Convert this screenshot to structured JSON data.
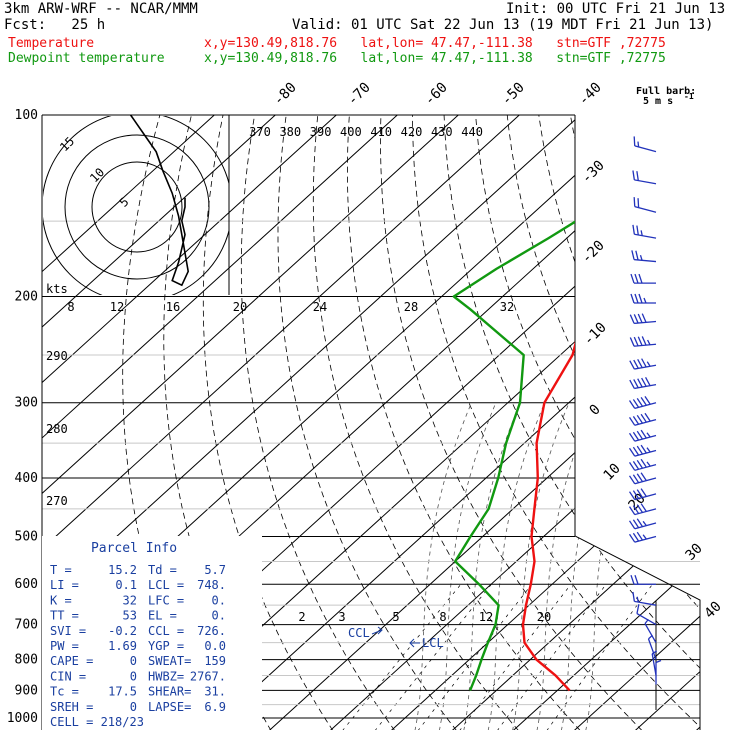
{
  "header": {
    "model": "3km ARW-WRF -- NCAR/MMM",
    "init": "Init: 00 UTC Fri 21 Jun 13",
    "fcst": "Fcst:   25 h",
    "valid": "Valid: 01 UTC Sat 22 Jun 13 (19 MDT Fri 21 Jun 13)",
    "temp_label": "Temperature",
    "dew_label": "Dewpoint temperature",
    "location": "x,y=130.49,818.76   lat,lon= 47.47,-111.38   stn=GTF ,72775",
    "colors": {
      "temperature": "#ee1111",
      "dewpoint": "#119911",
      "parcel_text": "#1a3fa0",
      "barbs": "#2233bb"
    }
  },
  "chart_data": {
    "type": "line",
    "title": "",
    "xlabel": "",
    "ylabel": "",
    "pressure_levels": [
      "100",
      "200",
      "300",
      "400",
      "500",
      "600",
      "700",
      "800",
      "900",
      "1000"
    ],
    "temp_ticks": [
      "-80",
      "-70",
      "-60",
      "-50",
      "-40",
      "-30",
      "-20",
      "-10",
      "0",
      "10",
      "20",
      "30",
      "40"
    ],
    "theta_labels": [
      "370",
      "380",
      "390",
      "400",
      "410",
      "420",
      "430",
      "440"
    ],
    "mixing_labels": [
      "2",
      "3",
      "5",
      "8",
      "12",
      "20"
    ],
    "dry_adiabat_labels": [
      "290",
      "280",
      "270"
    ],
    "hodo_top_labels": [
      "8",
      "12",
      "16",
      "20",
      "24",
      "28",
      "32"
    ],
    "hodo_rings": [
      "5",
      "10",
      "15"
    ],
    "hodo_unit": "kts",
    "barb_legend": {
      "title": "Full barb:",
      "unit": "5 m s",
      "sup": "-1"
    },
    "annotations": {
      "ccl": "CCL",
      "lcl": "LCL"
    },
    "series": [
      {
        "name": "Temperature",
        "points": [
          [
            900,
            22
          ],
          [
            850,
            17
          ],
          [
            800,
            11
          ],
          [
            750,
            6
          ],
          [
            700,
            2.5
          ],
          [
            650,
            -0.5
          ],
          [
            600,
            -3.5
          ],
          [
            550,
            -7
          ],
          [
            500,
            -12
          ],
          [
            450,
            -16.5
          ],
          [
            400,
            -21.5
          ],
          [
            350,
            -28
          ],
          [
            300,
            -34
          ],
          [
            250,
            -38
          ],
          [
            200,
            -46
          ],
          [
            180,
            -50
          ],
          [
            160,
            -53
          ],
          [
            140,
            -56
          ],
          [
            120,
            -58
          ],
          [
            100,
            -60
          ]
        ]
      },
      {
        "name": "Dewpoint temperature",
        "points": [
          [
            900,
            5.7
          ],
          [
            850,
            4
          ],
          [
            800,
            2
          ],
          [
            750,
            0
          ],
          [
            700,
            -2
          ],
          [
            650,
            -5
          ],
          [
            600,
            -12
          ],
          [
            550,
            -20
          ],
          [
            500,
            -22
          ],
          [
            450,
            -24
          ],
          [
            400,
            -28
          ],
          [
            350,
            -33
          ],
          [
            300,
            -38
          ],
          [
            250,
            -46
          ],
          [
            210,
            -63
          ],
          [
            200,
            -68
          ],
          [
            180,
            -66
          ],
          [
            160,
            -63
          ],
          [
            140,
            -60
          ],
          [
            120,
            -55
          ],
          [
            100,
            -52
          ]
        ]
      }
    ],
    "wind_barbs": [
      {
        "p": 115,
        "speed": 8,
        "dir": 285
      },
      {
        "p": 130,
        "speed": 10,
        "dir": 280
      },
      {
        "p": 145,
        "speed": 10,
        "dir": 285
      },
      {
        "p": 160,
        "speed": 13,
        "dir": 280
      },
      {
        "p": 175,
        "speed": 13,
        "dir": 275
      },
      {
        "p": 190,
        "speed": 15,
        "dir": 270
      },
      {
        "p": 205,
        "speed": 18,
        "dir": 270
      },
      {
        "p": 220,
        "speed": 20,
        "dir": 265
      },
      {
        "p": 240,
        "speed": 22,
        "dir": 265
      },
      {
        "p": 260,
        "speed": 24,
        "dir": 260
      },
      {
        "p": 280,
        "speed": 25,
        "dir": 260
      },
      {
        "p": 300,
        "speed": 26,
        "dir": 255
      },
      {
        "p": 320,
        "speed": 25,
        "dir": 255
      },
      {
        "p": 340,
        "speed": 24,
        "dir": 255
      },
      {
        "p": 360,
        "speed": 23,
        "dir": 255
      },
      {
        "p": 380,
        "speed": 22,
        "dir": 255
      },
      {
        "p": 400,
        "speed": 21,
        "dir": 255
      },
      {
        "p": 425,
        "speed": 20,
        "dir": 255
      },
      {
        "p": 450,
        "speed": 20,
        "dir": 255
      },
      {
        "p": 475,
        "speed": 19,
        "dir": 255
      },
      {
        "p": 500,
        "speed": 18,
        "dir": 255
      },
      {
        "p": 600,
        "speed": 10,
        "dir": 270
      },
      {
        "p": 650,
        "speed": 8,
        "dir": 280
      },
      {
        "p": 700,
        "speed": 5,
        "dir": 300
      },
      {
        "p": 750,
        "speed": 4,
        "dir": 330
      },
      {
        "p": 800,
        "speed": 3,
        "dir": 340
      },
      {
        "p": 850,
        "speed": 3,
        "dir": 350
      },
      {
        "p": 880,
        "speed": 2,
        "dir": 0
      }
    ],
    "hodograph": [
      [
        -2,
        -20
      ],
      [
        -1,
        -19
      ],
      [
        0,
        -18
      ],
      [
        3,
        -15
      ],
      [
        6,
        -12
      ],
      [
        8,
        -8
      ],
      [
        11,
        -3
      ],
      [
        13,
        2
      ],
      [
        14,
        6
      ],
      [
        15,
        10
      ],
      [
        16,
        14
      ],
      [
        14,
        17
      ],
      [
        11,
        16
      ],
      [
        13,
        12
      ],
      [
        14,
        9
      ],
      [
        15,
        6
      ],
      [
        14,
        3
      ],
      [
        15,
        0
      ],
      [
        15,
        -2
      ]
    ]
  },
  "parcel_info": {
    "title": "Parcel Info",
    "rows": [
      [
        "T  =",
        "15.2",
        "Td =",
        "5.7"
      ],
      [
        "LI =",
        "0.1",
        "LCL =",
        "748."
      ],
      [
        "K  =",
        "32",
        "LFC =",
        "0."
      ],
      [
        "TT =",
        "53",
        "EL  =",
        "0."
      ],
      [
        "SVI =",
        "-0.2",
        "CCL =",
        "726."
      ],
      [
        "PW =",
        "1.69",
        "YGP =",
        "0.0"
      ],
      [
        "CAPE =",
        "0",
        "SWEAT=",
        "159"
      ],
      [
        "CIN =",
        "0",
        "HWBZ=",
        "2767."
      ],
      [
        "Tc =",
        "17.5",
        "SHEAR=",
        "31."
      ],
      [
        "SREH =",
        "0",
        "LAPSE=",
        "6.9"
      ]
    ],
    "cell": "CELL = 218/23"
  }
}
